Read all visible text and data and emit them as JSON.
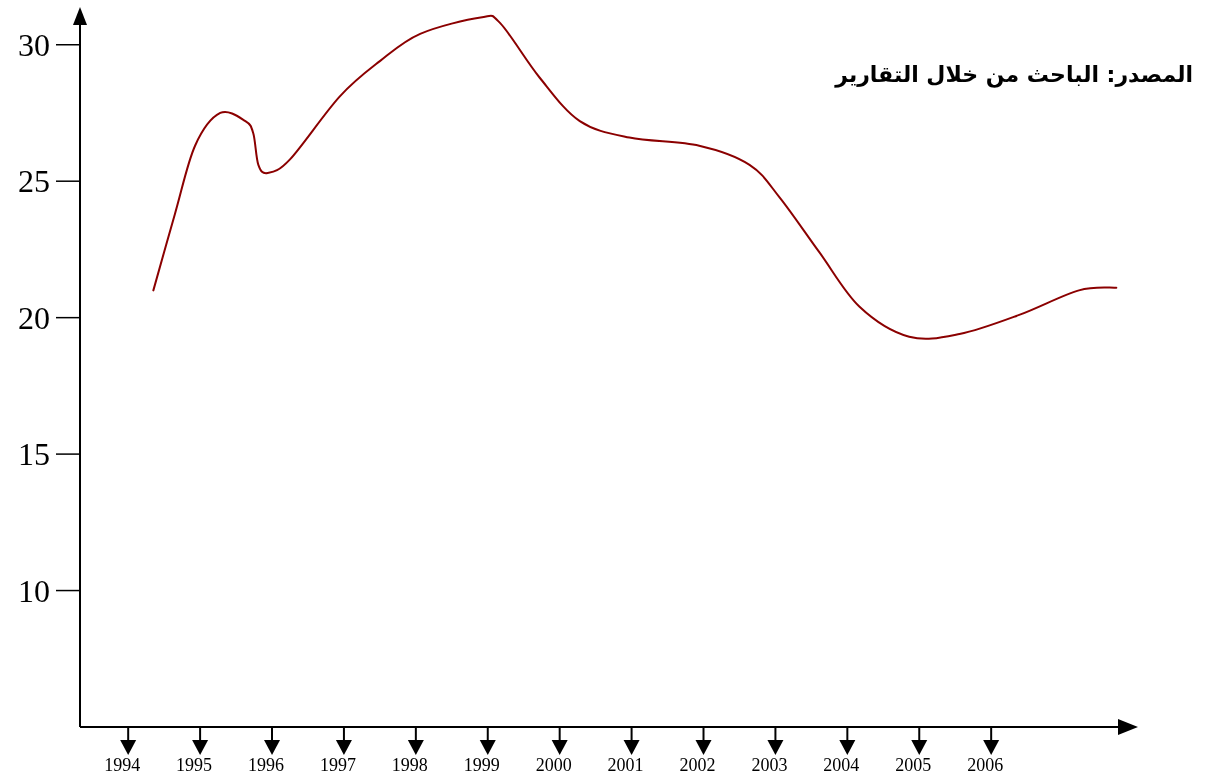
{
  "chart_data": {
    "type": "line",
    "x": [
      1994.35,
      1994.65,
      1994.93,
      1995.28,
      1995.63,
      1995.74,
      1995.81,
      1995.94,
      1996.25,
      1996.94,
      1997.5,
      1998.06,
      1998.9,
      1999.17,
      1999.72,
      2000.28,
      2000.97,
      2001.94,
      2002.64,
      2003.06,
      2003.61,
      2004.17,
      2004.86,
      2005.56,
      2006.39,
      2007.22,
      2007.74
    ],
    "series": [
      {
        "color": "#8b0000",
        "values": [
          21.0,
          23.8,
          26.3,
          27.5,
          27.2,
          26.75,
          25.6,
          25.3,
          25.8,
          28.1,
          29.4,
          30.4,
          31.0,
          30.8,
          28.8,
          27.2,
          26.6,
          26.3,
          25.6,
          24.4,
          22.4,
          20.4,
          19.3,
          19.4,
          20.1,
          21.0,
          21.1
        ]
      }
    ],
    "xlim": [
      1993.33,
      2008
    ],
    "ylim": [
      5,
      31.2
    ],
    "xticks": [
      1994,
      1995,
      1996,
      1997,
      1998,
      1999,
      2000,
      2001,
      2002,
      2003,
      2004,
      2005,
      2006
    ],
    "yticks": [
      10,
      15,
      20,
      25,
      30
    ],
    "annotations": [
      "المصدر: الباحث من خلال التقارير"
    ],
    "line_style": "solid"
  }
}
